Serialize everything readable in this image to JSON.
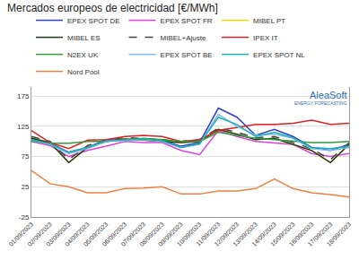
{
  "chart_data": {
    "type": "line",
    "title": "Mercados europeos de electricidad [€/MWh]",
    "annotations": [
      "AleaSoft",
      "ENERGY FORECASTING"
    ],
    "categories": [
      "01/09/2023",
      "02/09/2023",
      "03/09/2023",
      "04/09/2023",
      "05/09/2023",
      "06/09/2023",
      "07/09/2023",
      "08/09/2023",
      "09/09/2023",
      "10/09/2023",
      "11/09/2023",
      "12/09/2023",
      "13/09/2023",
      "14/09/2023",
      "15/09/2023",
      "16/09/2023",
      "17/09/2023",
      "18/09/2023"
    ],
    "series": [
      {
        "name": "EPEX SPOT DE",
        "color": "#2f3fd0",
        "line_style": "solid",
        "values": [
          105,
          97,
          82,
          90,
          103,
          102,
          104,
          102,
          92,
          98,
          155,
          140,
          110,
          120,
          108,
          90,
          85,
          95
        ]
      },
      {
        "name": "EPEX SPOT FR",
        "color": "#e040e0",
        "line_style": "solid",
        "values": [
          100,
          93,
          75,
          85,
          92,
          100,
          98,
          98,
          85,
          78,
          118,
          108,
          100,
          98,
          95,
          80,
          75,
          80
        ]
      },
      {
        "name": "MIBEL PT",
        "color": "#e6d800",
        "line_style": "solid",
        "values": [
          105,
          98,
          65,
          90,
          100,
          104,
          102,
          100,
          98,
          100,
          120,
          112,
          103,
          105,
          95,
          85,
          65,
          95
        ]
      },
      {
        "name": "MIBEL ES",
        "color": "#1f3a1f",
        "line_style": "solid",
        "values": [
          105,
          98,
          65,
          90,
          100,
          104,
          102,
          100,
          98,
          100,
          120,
          112,
          103,
          105,
          95,
          85,
          65,
          95
        ]
      },
      {
        "name": "MIBEL+Ajuste",
        "color": "#444444",
        "line_style": "dash",
        "values": [
          108,
          100,
          70,
          93,
          103,
          106,
          105,
          103,
          100,
          103,
          122,
          115,
          106,
          108,
          98,
          88,
          70,
          98
        ]
      },
      {
        "name": "IPEX IT",
        "color": "#e02020",
        "line_style": "solid",
        "values": [
          118,
          98,
          88,
          102,
          103,
          108,
          110,
          108,
          100,
          103,
          118,
          123,
          128,
          128,
          130,
          135,
          128,
          130
        ]
      },
      {
        "name": "N2EX UK",
        "color": "#2e9e3e",
        "line_style": "solid",
        "values": [
          100,
          97,
          97,
          100,
          100,
          103,
          105,
          103,
          100,
          100,
          115,
          110,
          105,
          103,
          100,
          98,
          98,
          100
        ]
      },
      {
        "name": "EPEX SPOT BE",
        "color": "#7fb8f0",
        "line_style": "solid",
        "values": [
          102,
          95,
          80,
          88,
          100,
          102,
          103,
          100,
          90,
          95,
          145,
          125,
          110,
          112,
          105,
          88,
          85,
          90
        ]
      },
      {
        "name": "EPEX SPOT NL",
        "color": "#20b0b0",
        "line_style": "solid",
        "values": [
          103,
          96,
          82,
          90,
          101,
          102,
          104,
          101,
          90,
          96,
          140,
          128,
          108,
          115,
          106,
          90,
          88,
          92
        ]
      },
      {
        "name": "Nord Pool",
        "color": "#f08040",
        "line_style": "solid",
        "values": [
          52,
          30,
          25,
          15,
          15,
          22,
          23,
          25,
          13,
          13,
          18,
          18,
          22,
          38,
          22,
          15,
          12,
          8
        ]
      }
    ],
    "ylim": [
      -25,
      190
    ],
    "yticks": [
      -25,
      25,
      75,
      125,
      175
    ],
    "grid": true,
    "legend": "top"
  }
}
